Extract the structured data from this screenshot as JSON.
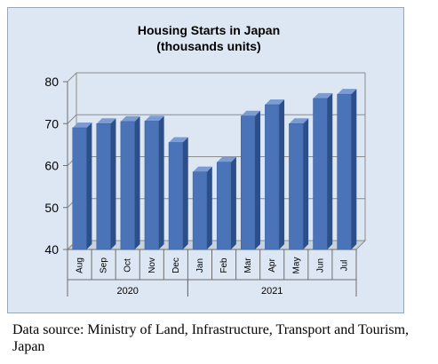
{
  "chart_data": {
    "type": "bar",
    "title": "Housing Starts in Japan",
    "subtitle": "(thousands units)",
    "categories": [
      "Aug",
      "Sep",
      "Oct",
      "Nov",
      "Dec",
      "Jan",
      "Feb",
      "Mar",
      "Apr",
      "May",
      "Jun",
      "Jul"
    ],
    "groups": [
      {
        "label": "2020",
        "span": 5
      },
      {
        "label": "2021",
        "span": 7
      }
    ],
    "values": [
      69,
      70,
      70.5,
      70.6,
      65.5,
      58.5,
      60.8,
      71.8,
      74.5,
      70,
      76,
      77
    ],
    "ylim": [
      40,
      80
    ],
    "yticks": [
      40,
      50,
      60,
      70,
      80
    ],
    "grid": true,
    "bar_color": "#4a73b8",
    "bar_side_color": "#2c4f8a",
    "bar_top_color": "#7a9bd3",
    "background_color": "#dde7f3"
  },
  "caption": "Data source: Ministry of Land, Infrastructure, Transport and Tourism, Japan"
}
